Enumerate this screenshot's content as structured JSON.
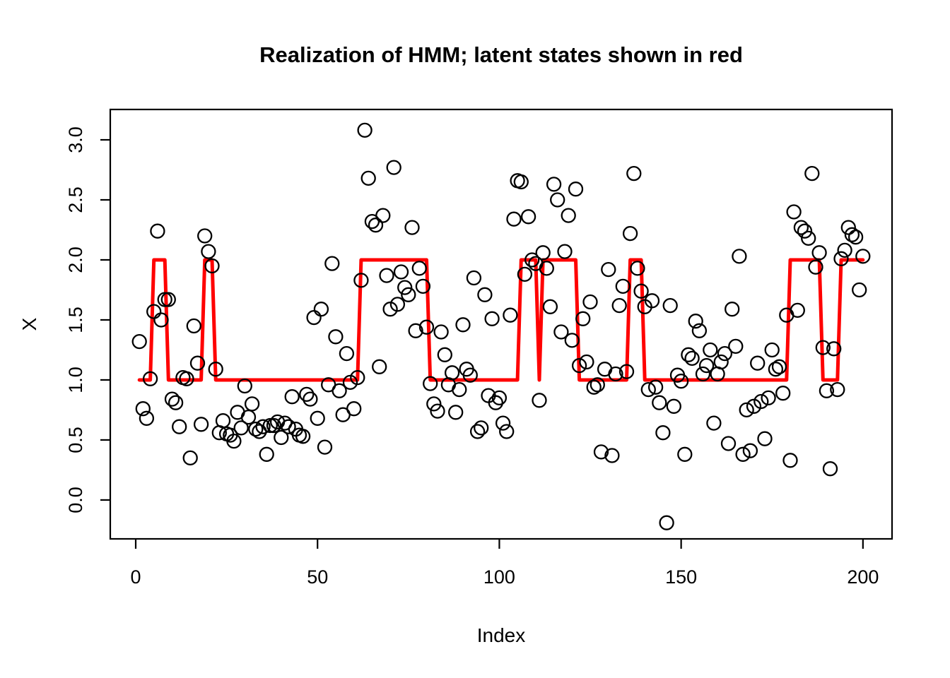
{
  "page": {
    "background_color": "#ffffff",
    "foreground_color": "#000000",
    "accent_color": "#ff0000"
  },
  "chart_data": {
    "type": "scatter",
    "title": "Realization of HMM; latent states shown in red",
    "xlabel": "Index",
    "ylabel": "X",
    "grid": false,
    "legend": "none",
    "x_ticks": [
      0,
      50,
      100,
      150,
      200
    ],
    "y_ticks": [
      "0.0",
      "0.5",
      "1.0",
      "1.5",
      "2.0",
      "2.5",
      "3.0"
    ],
    "xlim": [
      -7.0,
      208.0
    ],
    "ylim": [
      -0.324,
      3.253
    ],
    "series": [
      {
        "name": "observations",
        "type": "scatter",
        "marker": "open-circle",
        "color": "#000000",
        "x_note": "x values are implicit indices 1..200, one per value",
        "values": [
          1.32,
          0.76,
          0.68,
          1.01,
          1.57,
          2.24,
          1.5,
          1.67,
          1.67,
          0.84,
          0.81,
          0.61,
          1.02,
          1.01,
          0.35,
          1.45,
          1.14,
          0.63,
          2.2,
          2.07,
          1.95,
          1.09,
          0.56,
          0.66,
          0.55,
          0.54,
          0.49,
          0.73,
          0.6,
          0.95,
          0.69,
          0.8,
          0.59,
          0.57,
          0.61,
          0.38,
          0.62,
          0.62,
          0.65,
          0.52,
          0.64,
          0.61,
          0.86,
          0.59,
          0.54,
          0.53,
          0.88,
          0.84,
          1.52,
          0.68,
          1.59,
          0.44,
          0.96,
          1.97,
          1.36,
          0.91,
          0.71,
          1.22,
          0.98,
          0.76,
          1.02,
          1.83,
          3.08,
          2.68,
          2.32,
          2.29,
          1.11,
          2.37,
          1.87,
          1.59,
          2.77,
          1.63,
          1.9,
          1.77,
          1.71,
          2.27,
          1.41,
          1.93,
          1.78,
          1.44,
          0.97,
          0.8,
          0.74,
          1.4,
          1.21,
          0.96,
          1.06,
          0.73,
          0.92,
          1.46,
          1.09,
          1.04,
          1.85,
          0.57,
          0.6,
          1.71,
          0.87,
          1.51,
          0.81,
          0.85,
          0.64,
          0.57,
          1.54,
          2.34,
          2.66,
          2.65,
          1.88,
          2.36,
          2.0,
          1.97,
          0.83,
          2.06,
          1.93,
          1.61,
          2.63,
          2.5,
          1.4,
          2.07,
          2.37,
          1.33,
          2.59,
          1.12,
          1.51,
          1.15,
          1.65,
          0.94,
          0.96,
          0.4,
          1.09,
          1.92,
          0.37,
          1.05,
          1.62,
          1.78,
          1.07,
          2.22,
          2.72,
          1.93,
          1.74,
          1.61,
          0.92,
          1.66,
          0.94,
          0.81,
          0.56,
          -0.19,
          1.62,
          0.78,
          1.04,
          0.99,
          0.38,
          1.21,
          1.18,
          1.49,
          1.41,
          1.05,
          1.12,
          1.25,
          0.64,
          1.05,
          1.15,
          1.22,
          0.47,
          1.59,
          1.28,
          2.03,
          0.38,
          0.75,
          0.41,
          0.78,
          1.14,
          0.82,
          0.51,
          0.85,
          1.25,
          1.09,
          1.11,
          0.89,
          1.54,
          0.33,
          2.4,
          1.58,
          2.27,
          2.24,
          2.18,
          2.72,
          1.94,
          2.06,
          1.27,
          0.91,
          0.26,
          1.26,
          0.92,
          2.01,
          2.08,
          2.27,
          2.21,
          2.19,
          1.75,
          2.03
        ]
      },
      {
        "name": "latent states",
        "type": "step-line",
        "color": "#ff0000",
        "line_width": 5,
        "base_state": 1,
        "state2_runs": [
          [
            5,
            8
          ],
          [
            19,
            21
          ],
          [
            62,
            80
          ],
          [
            106,
            110
          ],
          [
            112,
            121
          ],
          [
            136,
            139
          ],
          [
            180,
            188
          ],
          [
            194,
            200
          ]
        ],
        "states_note": "state is 2 on the listed inclusive index runs, otherwise 1; single dip to 1 at index 111"
      }
    ]
  }
}
